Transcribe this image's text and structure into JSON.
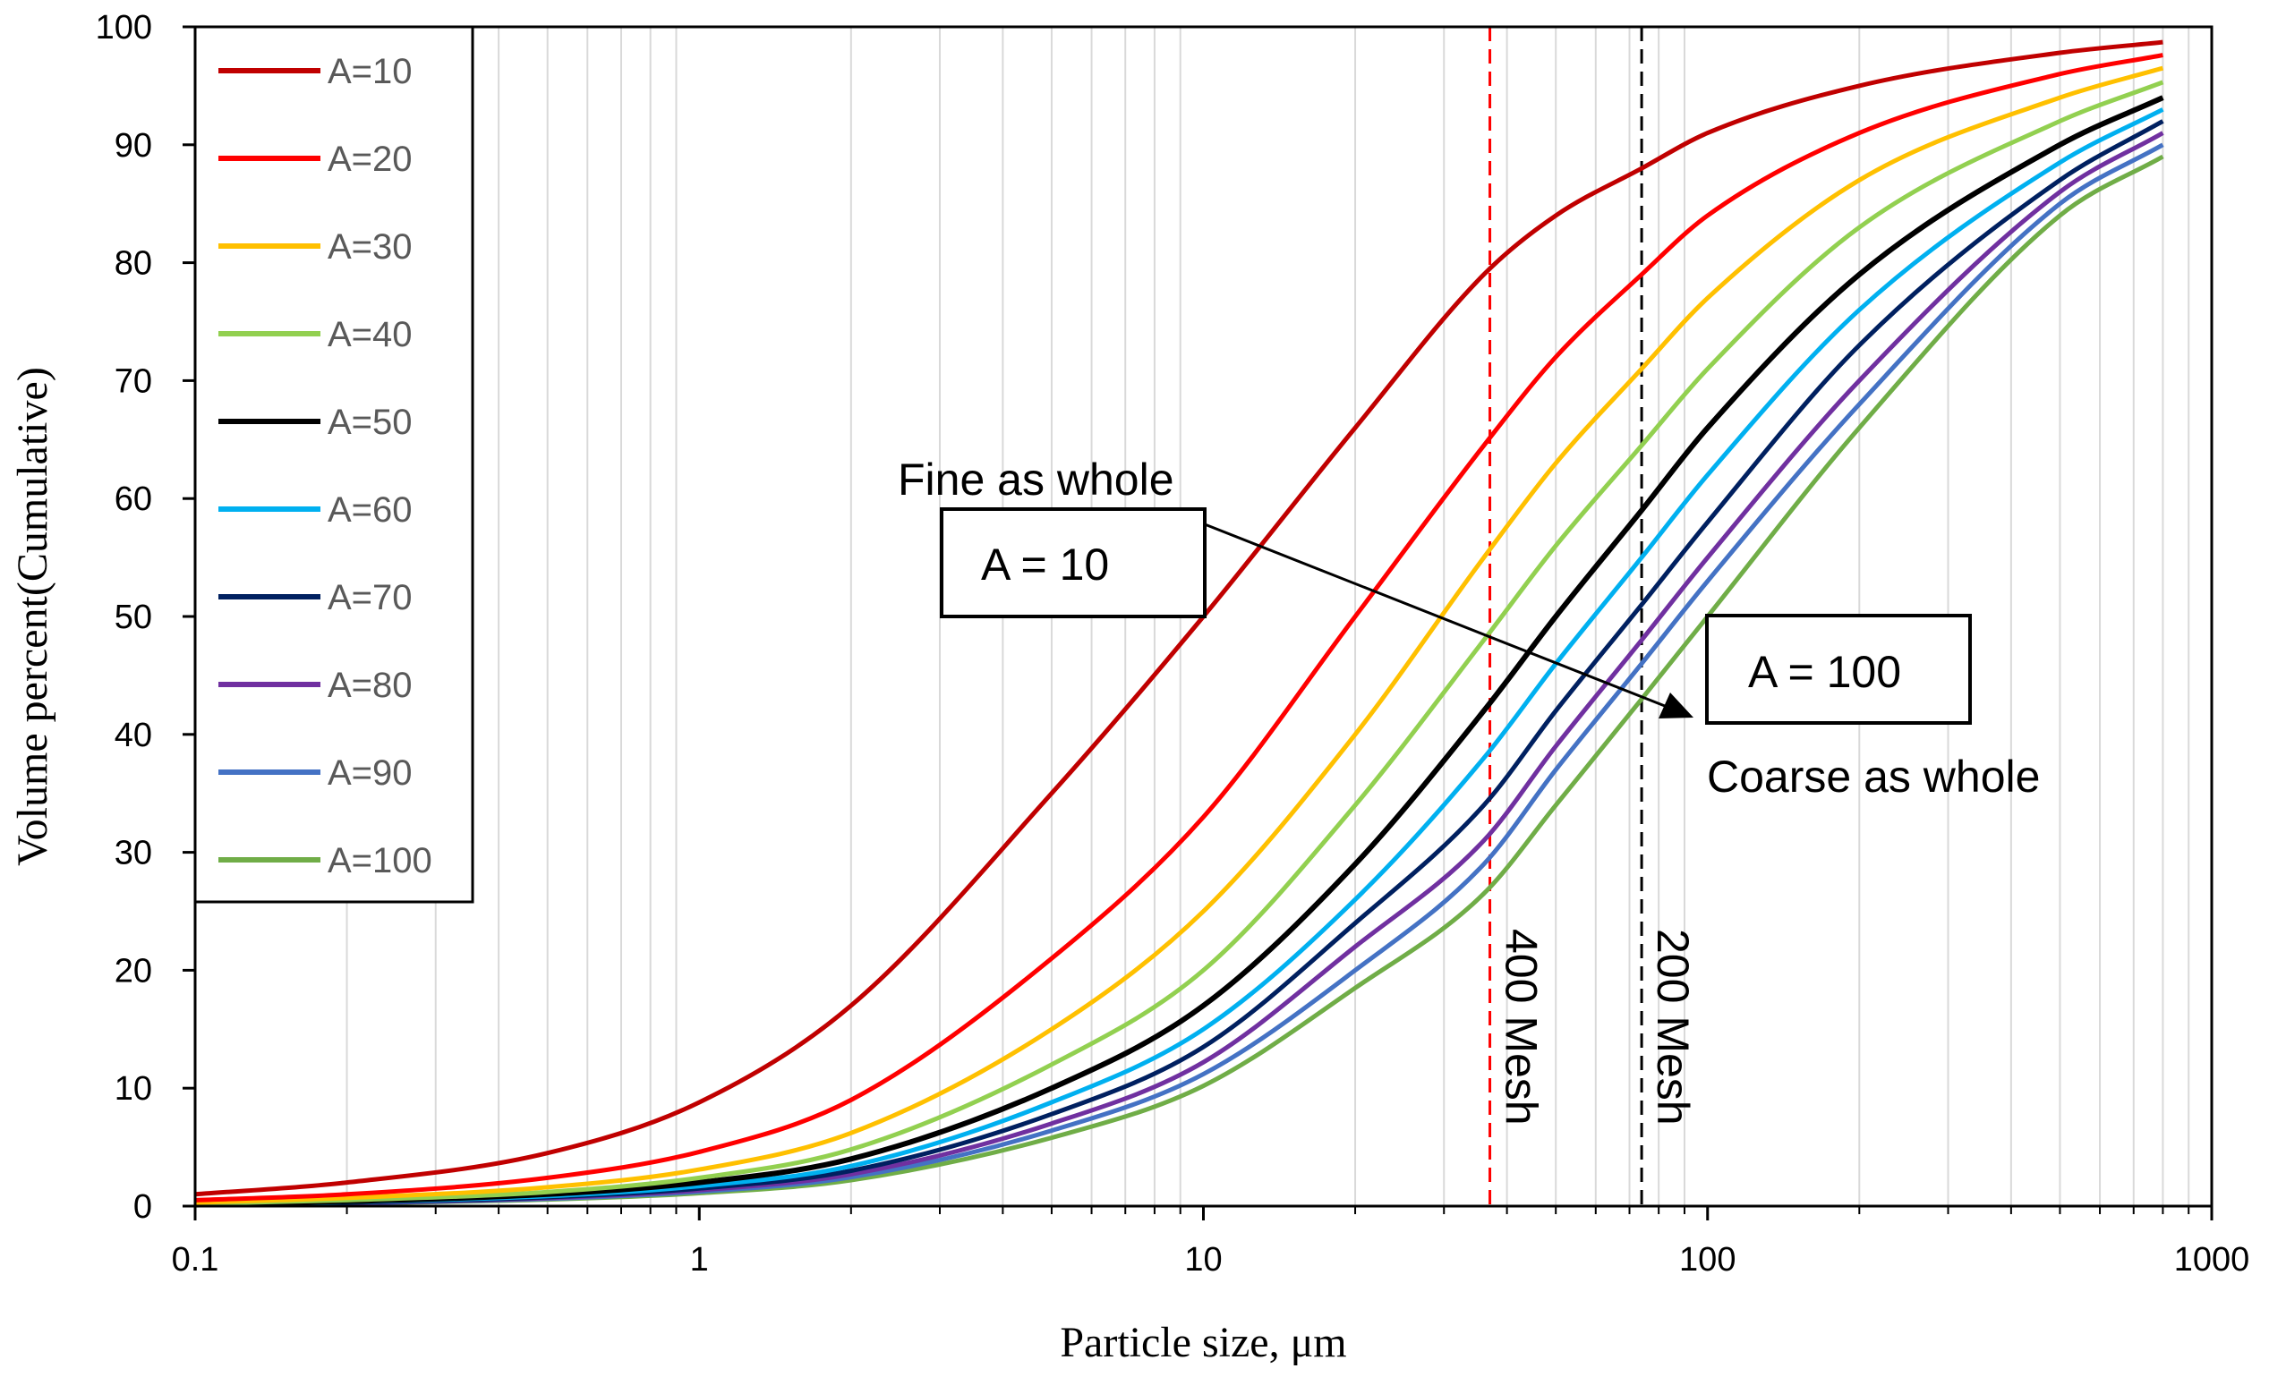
{
  "chart_data": {
    "type": "line",
    "title": "",
    "xlabel": "Particle size, μm",
    "ylabel": "Volume percent(Cumulative)",
    "xscale": "log",
    "xlim": [
      0.1,
      1000
    ],
    "ylim": [
      0,
      100
    ],
    "x_tick_labels": [
      "0.1",
      "1",
      "10",
      "100",
      "1000"
    ],
    "y_tick_labels": [
      "0",
      "10",
      "20",
      "30",
      "40",
      "50",
      "60",
      "70",
      "80",
      "90",
      "100"
    ],
    "grid": "vertical minor gridlines",
    "legend_position": "top-left",
    "x": [
      0.1,
      0.2,
      0.5,
      1,
      2,
      5,
      10,
      20,
      36,
      50,
      74,
      100,
      200,
      500,
      800
    ],
    "series": [
      {
        "name": "A=10",
        "color": "#C00000",
        "values": [
          1.0,
          2.0,
          4.5,
          8.8,
          17,
          35,
          50,
          66,
          79,
          84,
          88,
          91,
          95,
          97.8,
          98.7
        ]
      },
      {
        "name": "A=20",
        "color": "#FF0000",
        "values": [
          0.5,
          1.0,
          2.4,
          4.6,
          9.0,
          21,
          33,
          50,
          64.5,
          72,
          79,
          84,
          91,
          96,
          97.6
        ]
      },
      {
        "name": "A=30",
        "color": "#FFC000",
        "values": [
          0.3,
          0.7,
          1.6,
          3.1,
          6.2,
          15,
          25,
          40,
          55,
          63,
          71,
          77,
          87,
          94,
          96.5
        ]
      },
      {
        "name": "A=40",
        "color": "#92D050",
        "values": [
          0.2,
          0.5,
          1.2,
          2.4,
          4.8,
          12,
          20,
          34,
          48,
          56,
          64.5,
          71,
          83,
          92,
          95.3
        ]
      },
      {
        "name": "A=50",
        "color": "#000000",
        "values": [
          0.15,
          0.4,
          1.0,
          2.0,
          4.0,
          10,
          17,
          29,
          42,
          50,
          59,
          66,
          79,
          90,
          94
        ]
      },
      {
        "name": "A=60",
        "color": "#00B0F0",
        "values": [
          0.12,
          0.35,
          0.85,
          1.7,
          3.4,
          8.8,
          15,
          26,
          38,
          46,
          55,
          62,
          76,
          88.5,
          93
        ]
      },
      {
        "name": "A=70",
        "color": "#002060",
        "values": [
          0.1,
          0.3,
          0.75,
          1.5,
          3.0,
          7.8,
          13.5,
          24,
          34,
          42,
          51,
          58,
          73,
          87,
          92
        ]
      },
      {
        "name": "A=80",
        "color": "#7030A0",
        "values": [
          0.09,
          0.27,
          0.68,
          1.35,
          2.7,
          7.0,
          12.2,
          22,
          31,
          39,
          48,
          55,
          70,
          86,
          91
        ]
      },
      {
        "name": "A=90",
        "color": "#4472C4",
        "values": [
          0.08,
          0.24,
          0.62,
          1.22,
          2.45,
          6.4,
          11.2,
          20,
          29,
          37,
          46,
          53,
          68,
          85,
          90
        ]
      },
      {
        "name": "A=100",
        "color": "#70AD47",
        "values": [
          0.07,
          0.22,
          0.56,
          1.1,
          2.2,
          5.8,
          10.2,
          18.5,
          26.5,
          34,
          43,
          50,
          66,
          84,
          89
        ]
      }
    ],
    "reference_lines": [
      {
        "x": 37,
        "label": "400 Mesh",
        "color": "#FF0000",
        "style": "dashed"
      },
      {
        "x": 74,
        "label": "200 Mesh",
        "color": "#000000",
        "style": "dashed"
      }
    ],
    "annotations": {
      "fine_text": "Fine as whole",
      "fine_box": "A = 10",
      "coarse_text": "Coarse as whole",
      "coarse_box": "A = 100"
    }
  }
}
